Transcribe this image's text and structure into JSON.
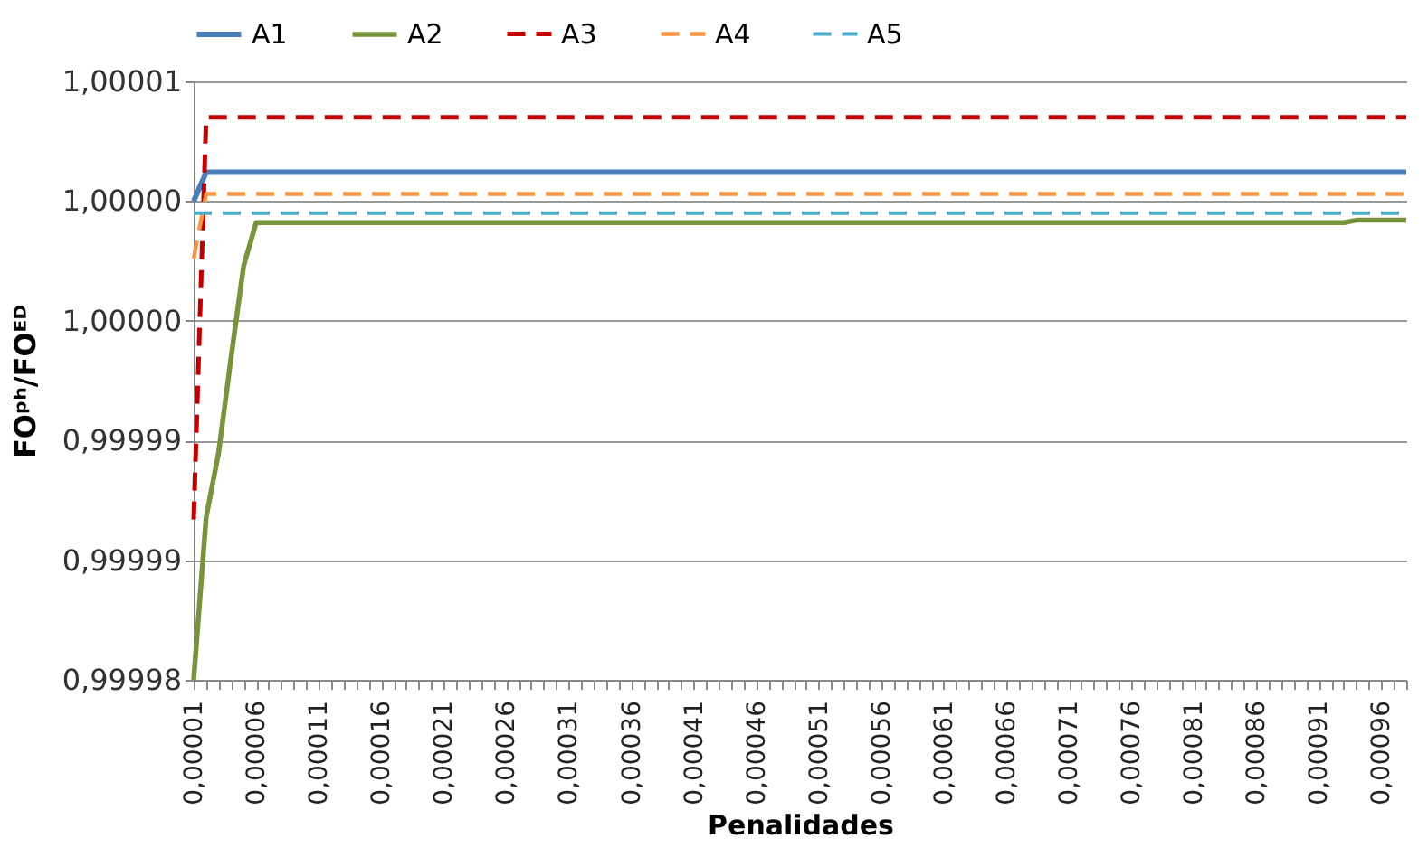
{
  "chart_data": {
    "type": "line",
    "xlabel": "Penalidades",
    "ylabel": "FOᵖʰ/FOᴱᴰ",
    "categories": [
      "0,00001",
      null,
      null,
      null,
      null,
      "0,00006",
      null,
      null,
      null,
      null,
      "0,00011",
      null,
      null,
      null,
      null,
      "0,00016",
      null,
      null,
      null,
      null,
      "0,00021",
      null,
      null,
      null,
      null,
      "0,00026",
      null,
      null,
      null,
      null,
      "0,00031",
      null,
      null,
      null,
      null,
      "0,00036",
      null,
      null,
      null,
      null,
      "0,00041",
      null,
      null,
      null,
      null,
      "0,00046",
      null,
      null,
      null,
      null,
      "0,00051",
      null,
      null,
      null,
      null,
      "0,00056",
      null,
      null,
      null,
      null,
      "0,00061",
      null,
      null,
      null,
      null,
      "0,00066",
      null,
      null,
      null,
      null,
      "0,00071",
      null,
      null,
      null,
      null,
      "0,00076",
      null,
      null,
      null,
      null,
      "0,00081",
      null,
      null,
      null,
      null,
      "0,00086",
      null,
      null,
      null,
      null,
      "0,00091",
      null,
      null,
      null,
      null,
      "0,00096",
      null,
      null
    ],
    "series": [
      {
        "name": "A1",
        "color": "#4a7ebb",
        "line_style": "solid",
        "values": [
          1.0,
          1.0000012,
          1.0000012,
          1.0000012,
          1.0000012,
          1.0000012,
          1.0000012,
          1.0000012,
          1.0000012,
          1.0000012,
          1.0000012,
          1.0000012,
          1.0000012,
          1.0000012,
          1.0000012,
          1.0000012,
          1.0000012,
          1.0000012,
          1.0000012,
          1.0000012,
          1.0000012,
          1.0000012,
          1.0000012,
          1.0000012,
          1.0000012,
          1.0000012,
          1.0000012,
          1.0000012,
          1.0000012,
          1.0000012,
          1.0000012,
          1.0000012,
          1.0000012,
          1.0000012,
          1.0000012,
          1.0000012,
          1.0000012,
          1.0000012,
          1.0000012,
          1.0000012,
          1.0000012,
          1.0000012,
          1.0000012,
          1.0000012,
          1.0000012,
          1.0000012,
          1.0000012,
          1.0000012,
          1.0000012,
          1.0000012,
          1.0000012,
          1.0000012,
          1.0000012,
          1.0000012,
          1.0000012,
          1.0000012,
          1.0000012,
          1.0000012,
          1.0000012,
          1.0000012,
          1.0000012,
          1.0000012,
          1.0000012,
          1.0000012,
          1.0000012,
          1.0000012,
          1.0000012,
          1.0000012,
          1.0000012,
          1.0000012,
          1.0000012,
          1.0000012,
          1.0000012,
          1.0000012,
          1.0000012,
          1.0000012,
          1.0000012,
          1.0000012,
          1.0000012,
          1.0000012,
          1.0000012,
          1.0000012,
          1.0000012,
          1.0000012,
          1.0000012,
          1.0000012,
          1.0000012,
          1.0000012,
          1.0000012,
          1.0000012,
          1.0000012,
          1.0000012,
          1.0000012,
          1.0000012,
          1.0000012,
          1.0000012,
          1.0000012,
          1.0000012
        ]
      },
      {
        "name": "A2",
        "color": "#77933c",
        "line_style": "solid",
        "values": [
          0.99998,
          0.9999868,
          0.9999895,
          0.9999935,
          0.9999973,
          0.9999991,
          0.9999991,
          0.9999991,
          0.9999991,
          0.9999991,
          0.9999991,
          0.9999991,
          0.9999991,
          0.9999991,
          0.9999991,
          0.9999991,
          0.9999991,
          0.9999991,
          0.9999991,
          0.9999991,
          0.9999991,
          0.9999991,
          0.9999991,
          0.9999991,
          0.9999991,
          0.9999991,
          0.9999991,
          0.9999991,
          0.9999991,
          0.9999991,
          0.9999991,
          0.9999991,
          0.9999991,
          0.9999991,
          0.9999991,
          0.9999991,
          0.9999991,
          0.9999991,
          0.9999991,
          0.9999991,
          0.9999991,
          0.9999991,
          0.9999991,
          0.9999991,
          0.9999991,
          0.9999991,
          0.9999991,
          0.9999991,
          0.9999991,
          0.9999991,
          0.9999991,
          0.9999991,
          0.9999991,
          0.9999991,
          0.9999991,
          0.9999991,
          0.9999991,
          0.9999991,
          0.9999991,
          0.9999991,
          0.9999991,
          0.9999991,
          0.9999991,
          0.9999991,
          0.9999991,
          0.9999991,
          0.9999991,
          0.9999991,
          0.9999991,
          0.9999991,
          0.9999991,
          0.9999991,
          0.9999991,
          0.9999991,
          0.9999991,
          0.9999991,
          0.9999991,
          0.9999991,
          0.9999991,
          0.9999991,
          0.9999991,
          0.9999991,
          0.9999991,
          0.9999991,
          0.9999991,
          0.9999991,
          0.9999991,
          0.9999991,
          0.9999991,
          0.9999991,
          0.9999991,
          0.9999991,
          0.9999991,
          0.9999992,
          0.9999992,
          0.9999992,
          0.9999992,
          0.9999992
        ]
      },
      {
        "name": "A3",
        "color": "#c00000",
        "line_style": "dashed",
        "values": [
          0.9999867,
          1.0000035,
          1.0000035,
          1.0000035,
          1.0000035,
          1.0000035,
          1.0000035,
          1.0000035,
          1.0000035,
          1.0000035,
          1.0000035,
          1.0000035,
          1.0000035,
          1.0000035,
          1.0000035,
          1.0000035,
          1.0000035,
          1.0000035,
          1.0000035,
          1.0000035,
          1.0000035,
          1.0000035,
          1.0000035,
          1.0000035,
          1.0000035,
          1.0000035,
          1.0000035,
          1.0000035,
          1.0000035,
          1.0000035,
          1.0000035,
          1.0000035,
          1.0000035,
          1.0000035,
          1.0000035,
          1.0000035,
          1.0000035,
          1.0000035,
          1.0000035,
          1.0000035,
          1.0000035,
          1.0000035,
          1.0000035,
          1.0000035,
          1.0000035,
          1.0000035,
          1.0000035,
          1.0000035,
          1.0000035,
          1.0000035,
          1.0000035,
          1.0000035,
          1.0000035,
          1.0000035,
          1.0000035,
          1.0000035,
          1.0000035,
          1.0000035,
          1.0000035,
          1.0000035,
          1.0000035,
          1.0000035,
          1.0000035,
          1.0000035,
          1.0000035,
          1.0000035,
          1.0000035,
          1.0000035,
          1.0000035,
          1.0000035,
          1.0000035,
          1.0000035,
          1.0000035,
          1.0000035,
          1.0000035,
          1.0000035,
          1.0000035,
          1.0000035,
          1.0000035,
          1.0000035,
          1.0000035,
          1.0000035,
          1.0000035,
          1.0000035,
          1.0000035,
          1.0000035,
          1.0000035,
          1.0000035,
          1.0000035,
          1.0000035,
          1.0000035,
          1.0000035,
          1.0000035,
          1.0000035,
          1.0000035,
          1.0000035,
          1.0000035,
          1.0000035
        ]
      },
      {
        "name": "A4",
        "color": "#f79646",
        "line_style": "dashed",
        "values": [
          0.9999976,
          1.0000003,
          1.0000003,
          1.0000003,
          1.0000003,
          1.0000003,
          1.0000003,
          1.0000003,
          1.0000003,
          1.0000003,
          1.0000003,
          1.0000003,
          1.0000003,
          1.0000003,
          1.0000003,
          1.0000003,
          1.0000003,
          1.0000003,
          1.0000003,
          1.0000003,
          1.0000003,
          1.0000003,
          1.0000003,
          1.0000003,
          1.0000003,
          1.0000003,
          1.0000003,
          1.0000003,
          1.0000003,
          1.0000003,
          1.0000003,
          1.0000003,
          1.0000003,
          1.0000003,
          1.0000003,
          1.0000003,
          1.0000003,
          1.0000003,
          1.0000003,
          1.0000003,
          1.0000003,
          1.0000003,
          1.0000003,
          1.0000003,
          1.0000003,
          1.0000003,
          1.0000003,
          1.0000003,
          1.0000003,
          1.0000003,
          1.0000003,
          1.0000003,
          1.0000003,
          1.0000003,
          1.0000003,
          1.0000003,
          1.0000003,
          1.0000003,
          1.0000003,
          1.0000003,
          1.0000003,
          1.0000003,
          1.0000003,
          1.0000003,
          1.0000003,
          1.0000003,
          1.0000003,
          1.0000003,
          1.0000003,
          1.0000003,
          1.0000003,
          1.0000003,
          1.0000003,
          1.0000003,
          1.0000003,
          1.0000003,
          1.0000003,
          1.0000003,
          1.0000003,
          1.0000003,
          1.0000003,
          1.0000003,
          1.0000003,
          1.0000003,
          1.0000003,
          1.0000003,
          1.0000003,
          1.0000003,
          1.0000003,
          1.0000003,
          1.0000003,
          1.0000003,
          1.0000003,
          1.0000003,
          1.0000003,
          1.0000003,
          1.0000003,
          1.0000003
        ]
      },
      {
        "name": "A5",
        "color": "#4bacc6",
        "line_style": "dashed",
        "values": [
          0.9999995,
          0.9999995,
          0.9999995,
          0.9999995,
          0.9999995,
          0.9999995,
          0.9999995,
          0.9999995,
          0.9999995,
          0.9999995,
          0.9999995,
          0.9999995,
          0.9999995,
          0.9999995,
          0.9999995,
          0.9999995,
          0.9999995,
          0.9999995,
          0.9999995,
          0.9999995,
          0.9999995,
          0.9999995,
          0.9999995,
          0.9999995,
          0.9999995,
          0.9999995,
          0.9999995,
          0.9999995,
          0.9999995,
          0.9999995,
          0.9999995,
          0.9999995,
          0.9999995,
          0.9999995,
          0.9999995,
          0.9999995,
          0.9999995,
          0.9999995,
          0.9999995,
          0.9999995,
          0.9999995,
          0.9999995,
          0.9999995,
          0.9999995,
          0.9999995,
          0.9999995,
          0.9999995,
          0.9999995,
          0.9999995,
          0.9999995,
          0.9999995,
          0.9999995,
          0.9999995,
          0.9999995,
          0.9999995,
          0.9999995,
          0.9999995,
          0.9999995,
          0.9999995,
          0.9999995,
          0.9999995,
          0.9999995,
          0.9999995,
          0.9999995,
          0.9999995,
          0.9999995,
          0.9999995,
          0.9999995,
          0.9999995,
          0.9999995,
          0.9999995,
          0.9999995,
          0.9999995,
          0.9999995,
          0.9999995,
          0.9999995,
          0.9999995,
          0.9999995,
          0.9999995,
          0.9999995,
          0.9999995,
          0.9999995,
          0.9999995,
          0.9999995,
          0.9999995,
          0.9999995,
          0.9999995,
          0.9999995,
          0.9999995,
          0.9999995,
          0.9999995,
          0.9999995,
          0.9999995,
          0.9999995,
          0.9999995,
          0.9999995,
          0.9999995,
          0.9999995
        ]
      }
    ],
    "ylim": [
      0.99998,
      1.000005
    ],
    "yticks": [
      {
        "value": 0.99998,
        "label": "0,99998"
      },
      {
        "value": 0.999985,
        "label": "0,99999"
      },
      {
        "value": 0.99999,
        "label": "0,99999"
      },
      {
        "value": 0.999995,
        "label": "1,00000"
      },
      {
        "value": 1.0,
        "label": "1,00000"
      },
      {
        "value": 1.000005,
        "label": "1,00001"
      }
    ],
    "grid": "y",
    "legend": "top"
  }
}
